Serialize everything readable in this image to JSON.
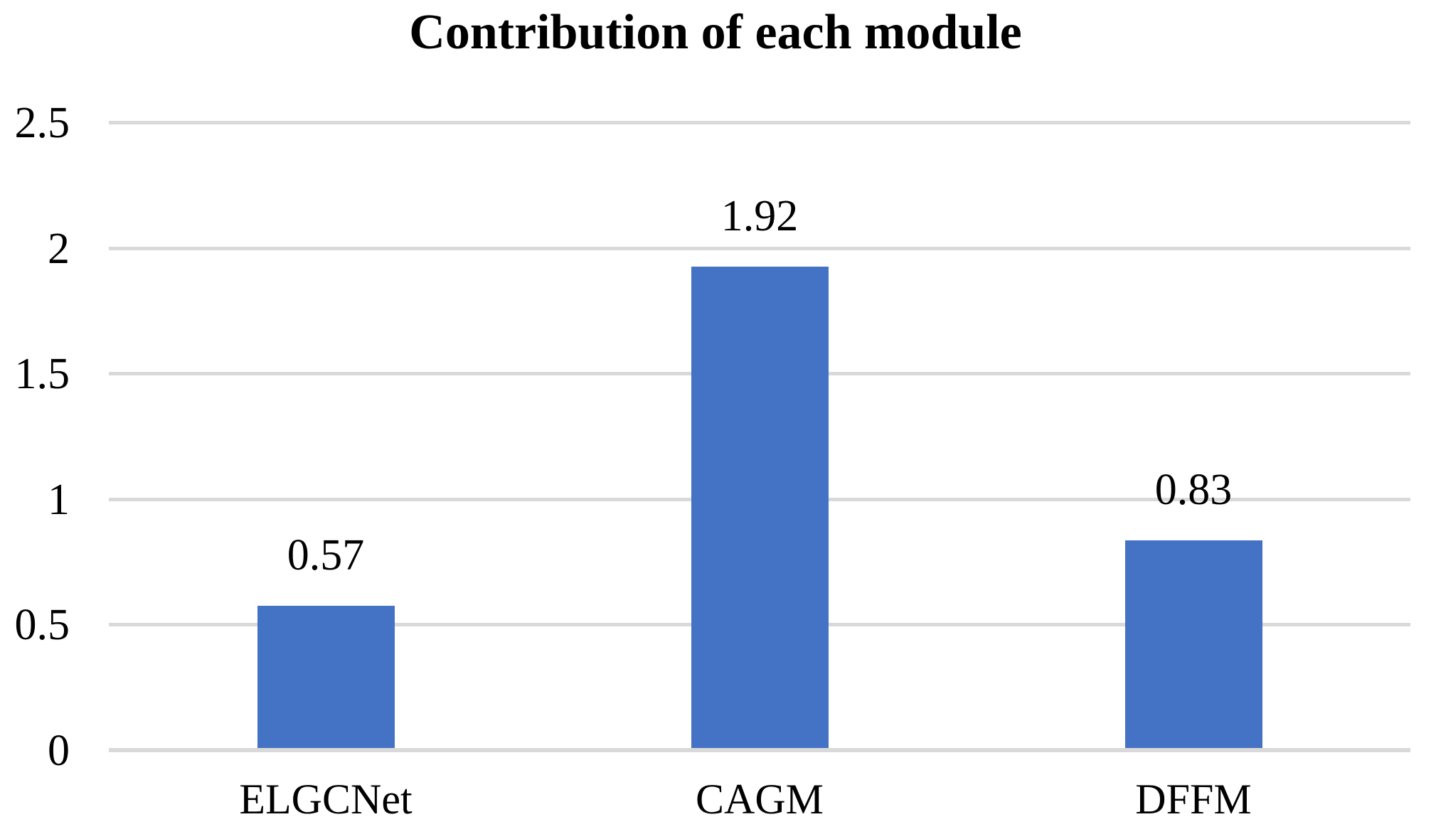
{
  "chart_data": {
    "type": "bar",
    "title": "Contribution of each module",
    "categories": [
      "ELGCNet",
      "CAGM",
      "DFFM"
    ],
    "values": [
      0.57,
      1.92,
      0.83
    ],
    "value_labels": [
      "0.57",
      "1.92",
      "0.83"
    ],
    "xlabel": "",
    "ylabel": "",
    "ylim": [
      0,
      2.5
    ],
    "ytick_step": 0.5,
    "yticks": [
      "2.5",
      "2",
      "1.5",
      "1",
      "0.5",
      "0"
    ],
    "grid": true,
    "legend": "none",
    "colors": {
      "bar": "#4472C4",
      "gridline": "#D9D9D9",
      "text": "#000000",
      "background": "#FFFFFF"
    }
  }
}
